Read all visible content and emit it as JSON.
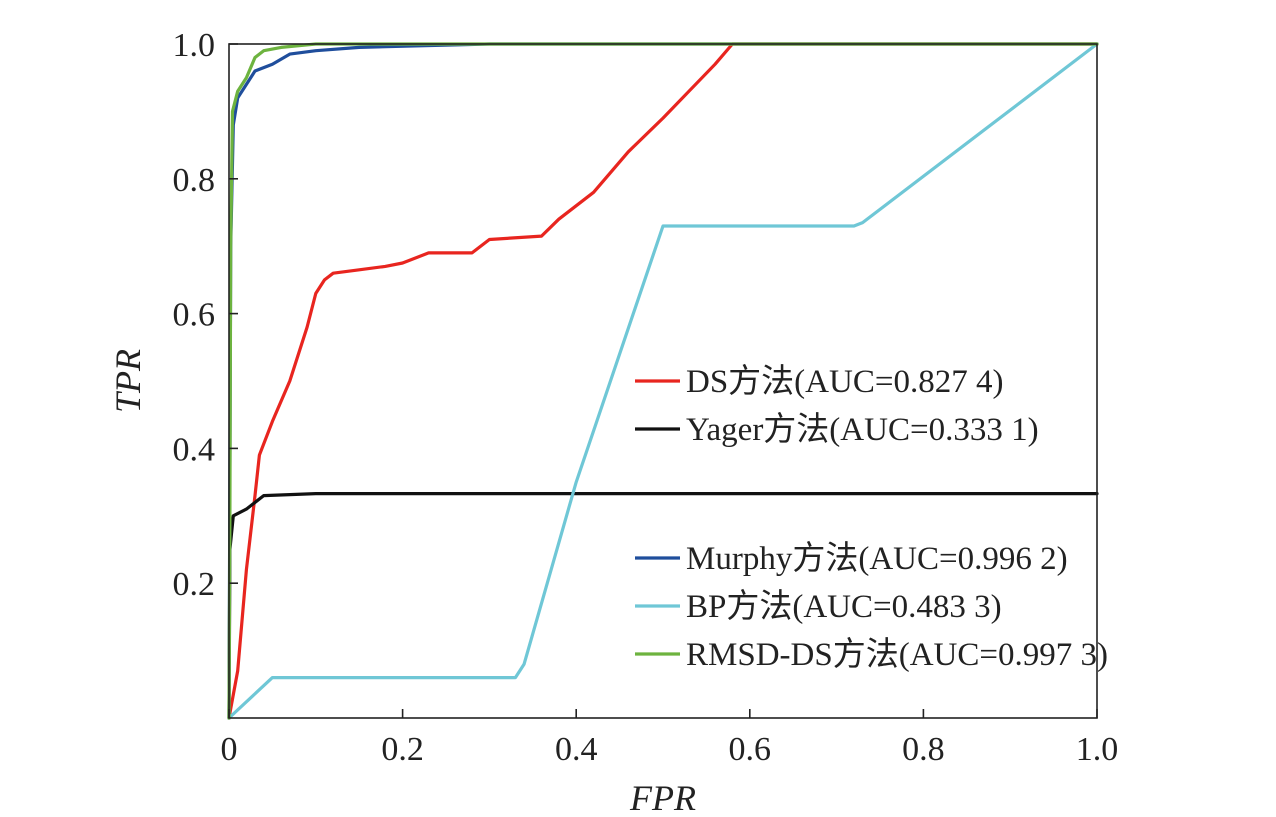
{
  "chart_data": {
    "type": "line",
    "title": "",
    "xlabel": "FPR",
    "ylabel": "TPR",
    "xlim": [
      0,
      1
    ],
    "ylim": [
      0,
      1
    ],
    "x_ticks": [
      0,
      0.2,
      0.4,
      0.6,
      0.8,
      1.0
    ],
    "x_tick_labels": [
      "0",
      "0.2",
      "0.4",
      "0.6",
      "0.8",
      "1.0"
    ],
    "y_ticks": [
      0.2,
      0.4,
      0.6,
      0.8,
      1.0
    ],
    "y_tick_labels": [
      "0.2",
      "0.4",
      "0.6",
      "0.8",
      "1.0"
    ],
    "grid": false,
    "legend_placement": "right",
    "series": [
      {
        "name": "DS方法(AUC=0.827 4)",
        "color": "#e8251f",
        "points": [
          [
            0,
            0
          ],
          [
            0.01,
            0.07
          ],
          [
            0.02,
            0.22
          ],
          [
            0.03,
            0.33
          ],
          [
            0.035,
            0.39
          ],
          [
            0.05,
            0.44
          ],
          [
            0.07,
            0.5
          ],
          [
            0.09,
            0.58
          ],
          [
            0.1,
            0.63
          ],
          [
            0.11,
            0.65
          ],
          [
            0.12,
            0.66
          ],
          [
            0.15,
            0.665
          ],
          [
            0.18,
            0.67
          ],
          [
            0.2,
            0.675
          ],
          [
            0.23,
            0.69
          ],
          [
            0.28,
            0.69
          ],
          [
            0.3,
            0.71
          ],
          [
            0.36,
            0.715
          ],
          [
            0.38,
            0.74
          ],
          [
            0.42,
            0.78
          ],
          [
            0.46,
            0.84
          ],
          [
            0.5,
            0.89
          ],
          [
            0.53,
            0.93
          ],
          [
            0.56,
            0.97
          ],
          [
            0.58,
            1.0
          ],
          [
            1.0,
            1.0
          ]
        ]
      },
      {
        "name": "Yager方法(AUC=0.333 1)",
        "color": "#111111",
        "points": [
          [
            0,
            0
          ],
          [
            0.001,
            0.25
          ],
          [
            0.005,
            0.3
          ],
          [
            0.02,
            0.31
          ],
          [
            0.04,
            0.33
          ],
          [
            0.1,
            0.333
          ],
          [
            1.0,
            0.333
          ]
        ]
      },
      {
        "name": "Murphy方法(AUC=0.996 2)",
        "color": "#1f4e9c",
        "points": [
          [
            0,
            0
          ],
          [
            0.002,
            0.7
          ],
          [
            0.005,
            0.88
          ],
          [
            0.01,
            0.92
          ],
          [
            0.02,
            0.94
          ],
          [
            0.03,
            0.96
          ],
          [
            0.05,
            0.97
          ],
          [
            0.07,
            0.985
          ],
          [
            0.1,
            0.99
          ],
          [
            0.15,
            0.995
          ],
          [
            0.3,
            1.0
          ],
          [
            1.0,
            1.0
          ]
        ]
      },
      {
        "name": "BP方法(AUC=0.483 3)",
        "color": "#6fc7d6",
        "points": [
          [
            0,
            0
          ],
          [
            0.05,
            0.06
          ],
          [
            0.33,
            0.06
          ],
          [
            0.34,
            0.08
          ],
          [
            0.4,
            0.35
          ],
          [
            0.5,
            0.73
          ],
          [
            0.72,
            0.73
          ],
          [
            0.73,
            0.735
          ],
          [
            1.0,
            1.0
          ]
        ]
      },
      {
        "name": "RMSD-DS方法(AUC=0.997 3)",
        "color": "#6db33f",
        "points": [
          [
            0,
            0
          ],
          [
            0.001,
            0.3
          ],
          [
            0.002,
            0.7
          ],
          [
            0.004,
            0.9
          ],
          [
            0.01,
            0.93
          ],
          [
            0.02,
            0.95
          ],
          [
            0.03,
            0.98
          ],
          [
            0.04,
            0.99
          ],
          [
            0.06,
            0.995
          ],
          [
            0.1,
            1.0
          ],
          [
            1.0,
            1.0
          ]
        ]
      }
    ],
    "legend_groups": [
      [
        0,
        1
      ],
      [
        2,
        3,
        4
      ]
    ]
  }
}
